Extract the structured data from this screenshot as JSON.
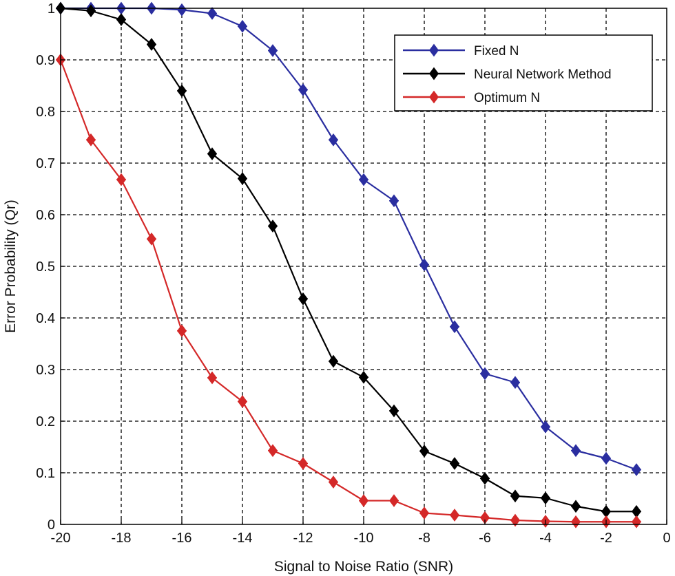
{
  "chart_data": {
    "type": "line",
    "xlabel": "Signal to Noise Ratio (SNR)",
    "ylabel": "Error Probability (Qr)",
    "xlim": [
      -20,
      0
    ],
    "ylim": [
      0,
      1
    ],
    "xticks": [
      -20,
      -18,
      -16,
      -14,
      -12,
      -10,
      -8,
      -6,
      -4,
      -2,
      0
    ],
    "yticks": [
      0,
      0.1,
      0.2,
      0.3,
      0.4,
      0.5,
      0.6,
      0.7,
      0.8,
      0.9,
      1
    ],
    "xtick_labels": [
      "-20",
      "-18",
      "-16",
      "-14",
      "-12",
      "-10",
      "-8",
      "-6",
      "-4",
      "-2",
      "0"
    ],
    "ytick_labels": [
      "0",
      "0.1",
      "0.2",
      "0.3",
      "0.4",
      "0.5",
      "0.6",
      "0.7",
      "0.8",
      "0.9",
      "1"
    ],
    "grid": true,
    "legend_position": "top-right",
    "series": [
      {
        "name": "Fixed N",
        "color": "#2a2ea0",
        "x": [
          -20,
          -19,
          -18,
          -17,
          -16,
          -15,
          -14,
          -13,
          -12,
          -11,
          -10,
          -9,
          -8,
          -7,
          -6,
          -5,
          -4,
          -3,
          -2,
          -1
        ],
        "y": [
          1.0,
          1.0,
          1.0,
          1.0,
          0.997,
          0.99,
          0.965,
          0.918,
          0.842,
          0.745,
          0.668,
          0.627,
          0.503,
          0.383,
          0.292,
          0.275,
          0.189,
          0.143,
          0.128,
          0.106
        ]
      },
      {
        "name": "Neural Network Method",
        "color": "#000000",
        "x": [
          -20,
          -19,
          -18,
          -17,
          -16,
          -15,
          -14,
          -13,
          -12,
          -11,
          -10,
          -9,
          -8,
          -7,
          -6,
          -5,
          -4,
          -3,
          -2,
          -1
        ],
        "y": [
          1.0,
          0.995,
          0.978,
          0.93,
          0.84,
          0.718,
          0.67,
          0.578,
          0.437,
          0.316,
          0.285,
          0.22,
          0.142,
          0.118,
          0.089,
          0.055,
          0.051,
          0.035,
          0.025,
          0.025
        ]
      },
      {
        "name": "Optimum N",
        "color": "#d42828",
        "x": [
          -20,
          -19,
          -18,
          -17,
          -16,
          -15,
          -14,
          -13,
          -12,
          -11,
          -10,
          -9,
          -8,
          -7,
          -6,
          -5,
          -4,
          -3,
          -2,
          -1
        ],
        "y": [
          0.9,
          0.745,
          0.668,
          0.553,
          0.375,
          0.284,
          0.238,
          0.143,
          0.118,
          0.082,
          0.046,
          0.046,
          0.022,
          0.018,
          0.013,
          0.008,
          0.006,
          0.005,
          0.005,
          0.005
        ]
      }
    ]
  }
}
